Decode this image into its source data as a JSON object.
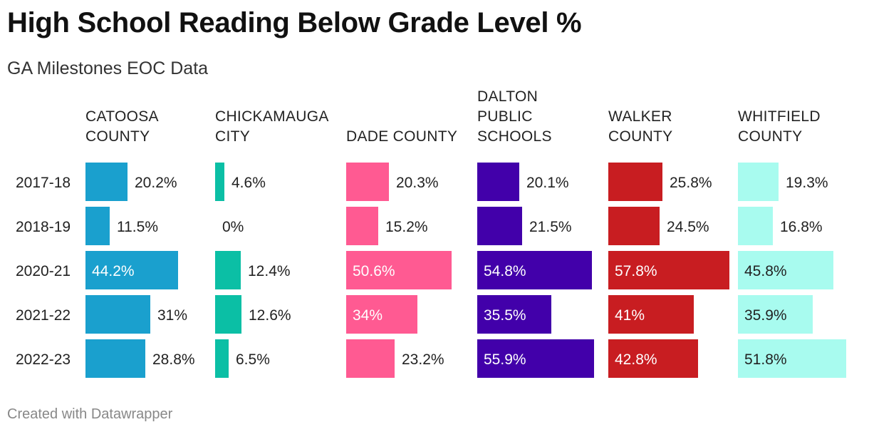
{
  "header": {
    "title": "High School Reading Below Grade Level %",
    "subtitle": "GA Milestones EOC Data"
  },
  "footer": {
    "credit": "Created with Datawrapper"
  },
  "chart_data": {
    "type": "bar",
    "orientation": "horizontal",
    "layout": "small-multiples",
    "title": "High School Reading Below Grade Level %",
    "subtitle": "GA Milestones EOC Data",
    "categories": [
      "2017-18",
      "2018-19",
      "2020-21",
      "2021-22",
      "2022-23"
    ],
    "value_format": "%",
    "series": [
      {
        "name": "CATOOSA COUNTY",
        "label_lines": [
          "CATOOSA",
          "COUNTY"
        ],
        "color": "#1aa0ce",
        "values": [
          20.2,
          11.5,
          44.2,
          31,
          28.8
        ],
        "labels": [
          "20.2%",
          "11.5%",
          "44.2%",
          "31%",
          "28.8%"
        ]
      },
      {
        "name": "CHICKAMAUGA CITY",
        "label_lines": [
          "CHICKAMAUGA",
          "CITY"
        ],
        "color": "#0bbfa5",
        "values": [
          4.6,
          0,
          12.4,
          12.6,
          6.5
        ],
        "labels": [
          "4.6%",
          "0%",
          "12.4%",
          "12.6%",
          "6.5%"
        ]
      },
      {
        "name": "DADE COUNTY",
        "label_lines": [
          "DADE COUNTY"
        ],
        "color": "#ff5a92",
        "values": [
          20.3,
          15.2,
          50.6,
          34,
          23.2
        ],
        "labels": [
          "20.3%",
          "15.2%",
          "50.6%",
          "34%",
          "23.2%"
        ]
      },
      {
        "name": "DALTON PUBLIC SCHOOLS",
        "label_lines": [
          "DALTON",
          "PUBLIC",
          "SCHOOLS"
        ],
        "color": "#4200aa",
        "values": [
          20.1,
          21.5,
          54.8,
          35.5,
          55.9
        ],
        "labels": [
          "20.1%",
          "21.5%",
          "54.8%",
          "35.5%",
          "55.9%"
        ]
      },
      {
        "name": "WALKER COUNTY",
        "label_lines": [
          "WALKER",
          "COUNTY"
        ],
        "color": "#c81d21",
        "values": [
          25.8,
          24.5,
          57.8,
          41,
          42.8
        ],
        "labels": [
          "25.8%",
          "24.5%",
          "57.8%",
          "41%",
          "42.8%"
        ]
      },
      {
        "name": "WHITFIELD COUNTY",
        "label_lines": [
          "WHITFIELD",
          "COUNTY"
        ],
        "color": "#a8fbef",
        "values": [
          19.3,
          16.8,
          45.8,
          35.9,
          51.8
        ],
        "labels": [
          "19.3%",
          "16.8%",
          "45.8%",
          "35.9%",
          "51.8%"
        ]
      }
    ]
  }
}
